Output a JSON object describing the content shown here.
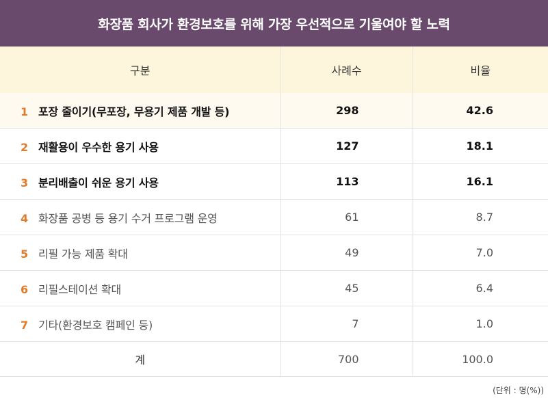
{
  "colors": {
    "title_bg": "#694a6d",
    "header_bg": "#fdf5dc",
    "first_row_bg": "#fffaef",
    "rank_color": "#e07b2a"
  },
  "title": "화장품 회사가 환경보호를 위해 가장 우선적으로 기울여야 할 노력",
  "table": {
    "headers": [
      "구분",
      "사례수",
      "비율"
    ],
    "rows": [
      {
        "rank": "1",
        "label": "포장 줄이기(무포장, 무용기 제품 개발 등)",
        "count": "298",
        "ratio": "42.6"
      },
      {
        "rank": "2",
        "label": "재활용이 우수한 용기 사용",
        "count": "127",
        "ratio": "18.1"
      },
      {
        "rank": "3",
        "label": "분리배출이 쉬운 용기 사용",
        "count": "113",
        "ratio": "16.1"
      },
      {
        "rank": "4",
        "label": "화장품 공병 등 용기 수거 프로그램 운영",
        "count": "61",
        "ratio": "8.7"
      },
      {
        "rank": "5",
        "label": "리필 가능 제품 확대",
        "count": "49",
        "ratio": "7.0"
      },
      {
        "rank": "6",
        "label": "리필스테이션 확대",
        "count": "45",
        "ratio": "6.4"
      },
      {
        "rank": "7",
        "label": "기타(환경보호 캠페인 등)",
        "count": "7",
        "ratio": "1.0"
      }
    ],
    "total": {
      "label": "계",
      "count": "700",
      "ratio": "100.0"
    }
  },
  "unit_note": "(단위 : 명(%))"
}
